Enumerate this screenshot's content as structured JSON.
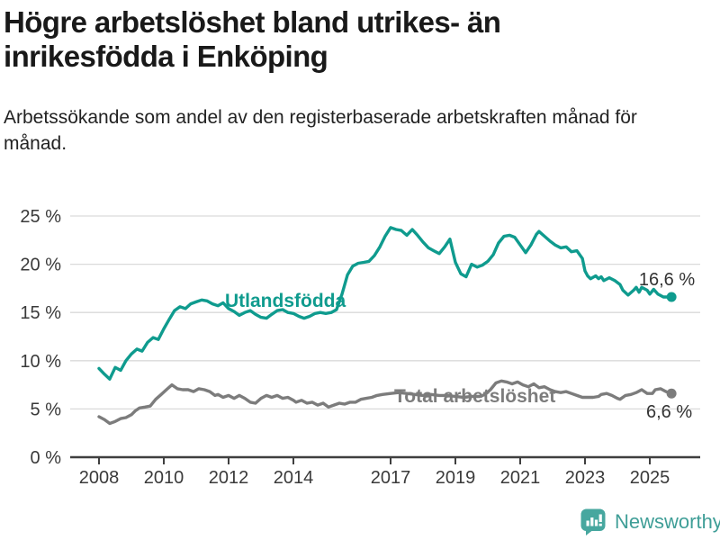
{
  "header": {
    "title": "Högre arbetslöshet bland utrikes- än\ninrikesfödda i Enköping",
    "subtitle": "Arbetssökande som andel av den registerbaserade arbetskraften månad för månad."
  },
  "footer": {
    "brand": "Newsworthy",
    "logo_icon": "newsworthy-speech-bubble-bar-chart-icon",
    "brand_color": "#3f9e97"
  },
  "colors": {
    "foreign_born_line": "#0f9b8e",
    "total_line": "#7c7c7c",
    "gridline": "#dadada",
    "axis": "#3f3f3f",
    "tick_label": "#3a3a3a",
    "value_label": "#333333"
  },
  "chart_data": {
    "type": "line",
    "grid": true,
    "legend": "inline-labels",
    "x_axis": {
      "ticks": [
        2008,
        2010,
        2012,
        2014,
        2017,
        2019,
        2021,
        2023,
        2025
      ],
      "range": [
        2007.1,
        2026.5
      ]
    },
    "y_axis": {
      "ticks": [
        0,
        5,
        10,
        15,
        20,
        25
      ],
      "tick_labels": [
        "0 %",
        "5 %",
        "10 %",
        "15 %",
        "20 %",
        "25 %"
      ],
      "range": [
        0,
        25
      ]
    },
    "series": [
      {
        "name": "Utlandsfödda",
        "color": "#0f9b8e",
        "end_value": 16.6,
        "end_label": "16,6 %",
        "points": [
          [
            2008.0,
            9.2
          ],
          [
            2008.17,
            8.6
          ],
          [
            2008.33,
            8.1
          ],
          [
            2008.5,
            9.3
          ],
          [
            2008.67,
            9.0
          ],
          [
            2008.83,
            10.0
          ],
          [
            2009.0,
            10.7
          ],
          [
            2009.17,
            11.2
          ],
          [
            2009.33,
            11.0
          ],
          [
            2009.5,
            11.9
          ],
          [
            2009.67,
            12.4
          ],
          [
            2009.83,
            12.2
          ],
          [
            2010.0,
            13.3
          ],
          [
            2010.17,
            14.3
          ],
          [
            2010.33,
            15.2
          ],
          [
            2010.5,
            15.6
          ],
          [
            2010.67,
            15.4
          ],
          [
            2010.83,
            15.9
          ],
          [
            2011.0,
            16.1
          ],
          [
            2011.17,
            16.3
          ],
          [
            2011.33,
            16.2
          ],
          [
            2011.5,
            15.9
          ],
          [
            2011.67,
            15.7
          ],
          [
            2011.83,
            16.0
          ],
          [
            2012.0,
            15.4
          ],
          [
            2012.17,
            15.1
          ],
          [
            2012.33,
            14.7
          ],
          [
            2012.5,
            15.0
          ],
          [
            2012.67,
            15.2
          ],
          [
            2012.83,
            14.8
          ],
          [
            2013.0,
            14.5
          ],
          [
            2013.17,
            14.4
          ],
          [
            2013.33,
            14.8
          ],
          [
            2013.5,
            15.2
          ],
          [
            2013.67,
            15.3
          ],
          [
            2013.83,
            15.0
          ],
          [
            2014.0,
            14.9
          ],
          [
            2014.17,
            14.6
          ],
          [
            2014.33,
            14.4
          ],
          [
            2014.5,
            14.6
          ],
          [
            2014.67,
            14.9
          ],
          [
            2014.83,
            15.0
          ],
          [
            2015.0,
            14.9
          ],
          [
            2015.17,
            15.0
          ],
          [
            2015.33,
            15.3
          ],
          [
            2015.5,
            16.9
          ],
          [
            2015.67,
            18.9
          ],
          [
            2015.83,
            19.8
          ],
          [
            2016.0,
            20.1
          ],
          [
            2016.17,
            20.2
          ],
          [
            2016.33,
            20.3
          ],
          [
            2016.5,
            20.9
          ],
          [
            2016.67,
            21.8
          ],
          [
            2016.83,
            22.9
          ],
          [
            2017.0,
            23.8
          ],
          [
            2017.17,
            23.6
          ],
          [
            2017.33,
            23.5
          ],
          [
            2017.5,
            23.0
          ],
          [
            2017.67,
            23.6
          ],
          [
            2017.83,
            23.0
          ],
          [
            2018.0,
            22.3
          ],
          [
            2018.17,
            21.7
          ],
          [
            2018.33,
            21.4
          ],
          [
            2018.5,
            21.1
          ],
          [
            2018.67,
            21.8
          ],
          [
            2018.83,
            22.6
          ],
          [
            2019.0,
            20.2
          ],
          [
            2019.17,
            19.0
          ],
          [
            2019.33,
            18.7
          ],
          [
            2019.5,
            20.0
          ],
          [
            2019.67,
            19.7
          ],
          [
            2019.83,
            19.9
          ],
          [
            2020.0,
            20.3
          ],
          [
            2020.17,
            21.0
          ],
          [
            2020.33,
            22.2
          ],
          [
            2020.5,
            22.9
          ],
          [
            2020.67,
            23.0
          ],
          [
            2020.83,
            22.8
          ],
          [
            2021.0,
            22.0
          ],
          [
            2021.17,
            21.2
          ],
          [
            2021.33,
            22.0
          ],
          [
            2021.5,
            23.1
          ],
          [
            2021.58,
            23.4
          ],
          [
            2021.75,
            22.9
          ],
          [
            2021.92,
            22.4
          ],
          [
            2022.08,
            22.0
          ],
          [
            2022.25,
            21.7
          ],
          [
            2022.42,
            21.8
          ],
          [
            2022.58,
            21.3
          ],
          [
            2022.75,
            21.4
          ],
          [
            2022.92,
            20.6
          ],
          [
            2023.0,
            19.3
          ],
          [
            2023.08,
            18.8
          ],
          [
            2023.17,
            18.5
          ],
          [
            2023.33,
            18.8
          ],
          [
            2023.42,
            18.5
          ],
          [
            2023.5,
            18.7
          ],
          [
            2023.58,
            18.3
          ],
          [
            2023.75,
            18.6
          ],
          [
            2023.92,
            18.3
          ],
          [
            2024.08,
            17.9
          ],
          [
            2024.17,
            17.3
          ],
          [
            2024.33,
            16.8
          ],
          [
            2024.5,
            17.3
          ],
          [
            2024.58,
            17.6
          ],
          [
            2024.67,
            17.1
          ],
          [
            2024.75,
            17.6
          ],
          [
            2024.92,
            17.3
          ],
          [
            2025.0,
            16.9
          ],
          [
            2025.12,
            17.4
          ],
          [
            2025.25,
            16.9
          ],
          [
            2025.42,
            16.6
          ],
          [
            2025.67,
            16.6
          ]
        ]
      },
      {
        "name": "Total arbetslöshet",
        "color": "#7c7c7c",
        "end_value": 6.6,
        "end_label": "6,6 %",
        "points": [
          [
            2008.0,
            4.2
          ],
          [
            2008.17,
            3.9
          ],
          [
            2008.33,
            3.5
          ],
          [
            2008.5,
            3.7
          ],
          [
            2008.67,
            4.0
          ],
          [
            2008.83,
            4.1
          ],
          [
            2009.0,
            4.4
          ],
          [
            2009.12,
            4.8
          ],
          [
            2009.25,
            5.1
          ],
          [
            2009.42,
            5.2
          ],
          [
            2009.58,
            5.3
          ],
          [
            2009.75,
            6.0
          ],
          [
            2009.92,
            6.5
          ],
          [
            2010.08,
            7.0
          ],
          [
            2010.25,
            7.5
          ],
          [
            2010.42,
            7.1
          ],
          [
            2010.58,
            7.0
          ],
          [
            2010.75,
            7.0
          ],
          [
            2010.92,
            6.8
          ],
          [
            2011.08,
            7.1
          ],
          [
            2011.25,
            7.0
          ],
          [
            2011.42,
            6.8
          ],
          [
            2011.58,
            6.4
          ],
          [
            2011.67,
            6.5
          ],
          [
            2011.83,
            6.2
          ],
          [
            2012.0,
            6.4
          ],
          [
            2012.17,
            6.1
          ],
          [
            2012.33,
            6.4
          ],
          [
            2012.5,
            6.1
          ],
          [
            2012.67,
            5.7
          ],
          [
            2012.83,
            5.6
          ],
          [
            2013.0,
            6.1
          ],
          [
            2013.17,
            6.4
          ],
          [
            2013.33,
            6.2
          ],
          [
            2013.5,
            6.4
          ],
          [
            2013.67,
            6.1
          ],
          [
            2013.83,
            6.2
          ],
          [
            2014.0,
            5.9
          ],
          [
            2014.08,
            5.7
          ],
          [
            2014.25,
            5.9
          ],
          [
            2014.42,
            5.6
          ],
          [
            2014.58,
            5.7
          ],
          [
            2014.75,
            5.4
          ],
          [
            2014.92,
            5.6
          ],
          [
            2015.08,
            5.2
          ],
          [
            2015.25,
            5.4
          ],
          [
            2015.42,
            5.6
          ],
          [
            2015.58,
            5.5
          ],
          [
            2015.75,
            5.7
          ],
          [
            2015.92,
            5.7
          ],
          [
            2016.08,
            6.0
          ],
          [
            2016.25,
            6.1
          ],
          [
            2016.42,
            6.2
          ],
          [
            2016.58,
            6.4
          ],
          [
            2016.75,
            6.5
          ],
          [
            2017.0,
            6.6
          ],
          [
            2017.25,
            6.7
          ],
          [
            2017.5,
            6.6
          ],
          [
            2017.75,
            6.5
          ],
          [
            2018.0,
            6.4
          ],
          [
            2018.25,
            6.5
          ],
          [
            2018.5,
            6.4
          ],
          [
            2018.75,
            6.4
          ],
          [
            2019.0,
            6.3
          ],
          [
            2019.25,
            6.2
          ],
          [
            2019.5,
            6.3
          ],
          [
            2019.75,
            6.3
          ],
          [
            2019.92,
            6.5
          ],
          [
            2020.08,
            7.0
          ],
          [
            2020.25,
            7.7
          ],
          [
            2020.42,
            7.9
          ],
          [
            2020.58,
            7.8
          ],
          [
            2020.75,
            7.6
          ],
          [
            2020.92,
            7.8
          ],
          [
            2021.08,
            7.5
          ],
          [
            2021.25,
            7.3
          ],
          [
            2021.42,
            7.6
          ],
          [
            2021.58,
            7.2
          ],
          [
            2021.75,
            7.3
          ],
          [
            2021.92,
            7.0
          ],
          [
            2022.08,
            6.8
          ],
          [
            2022.25,
            6.7
          ],
          [
            2022.42,
            6.8
          ],
          [
            2022.58,
            6.6
          ],
          [
            2022.75,
            6.4
          ],
          [
            2022.92,
            6.2
          ],
          [
            2023.08,
            6.2
          ],
          [
            2023.25,
            6.2
          ],
          [
            2023.42,
            6.3
          ],
          [
            2023.5,
            6.5
          ],
          [
            2023.67,
            6.6
          ],
          [
            2023.83,
            6.4
          ],
          [
            2024.0,
            6.1
          ],
          [
            2024.08,
            6.0
          ],
          [
            2024.25,
            6.4
          ],
          [
            2024.42,
            6.5
          ],
          [
            2024.58,
            6.7
          ],
          [
            2024.75,
            7.0
          ],
          [
            2024.92,
            6.6
          ],
          [
            2025.08,
            6.6
          ],
          [
            2025.17,
            7.0
          ],
          [
            2025.33,
            7.1
          ],
          [
            2025.5,
            6.8
          ],
          [
            2025.67,
            6.6
          ]
        ]
      }
    ]
  }
}
